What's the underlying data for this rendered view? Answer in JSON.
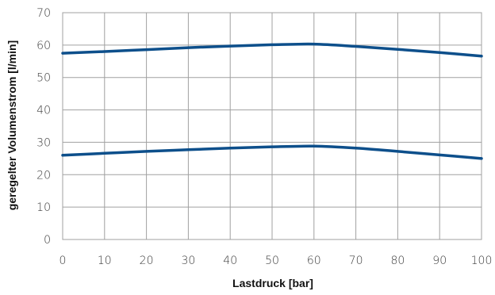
{
  "chart_data": {
    "type": "line",
    "title": "",
    "xlabel": "Lastdruck [bar]",
    "ylabel": "geregelter Volumenstrom [l/min]",
    "xlim": [
      0,
      100
    ],
    "ylim": [
      0,
      70
    ],
    "x_ticks": [
      "0",
      "10",
      "20",
      "30",
      "40",
      "50",
      "60",
      "70",
      "80",
      "90",
      "100"
    ],
    "y_ticks": [
      "0",
      "10",
      "20",
      "30",
      "40",
      "50",
      "60",
      "70"
    ],
    "grid": true,
    "series_color": "#0d4f8b",
    "series": [
      {
        "x": [
          0,
          10,
          20,
          30,
          40,
          50,
          60,
          70,
          80,
          90,
          100
        ],
        "values": [
          57.5,
          58.0,
          58.6,
          59.2,
          59.7,
          60.1,
          60.3,
          59.6,
          58.7,
          57.7,
          56.6
        ]
      },
      {
        "x": [
          0,
          10,
          20,
          30,
          40,
          50,
          60,
          70,
          80,
          90,
          100
        ],
        "values": [
          26.0,
          26.6,
          27.2,
          27.7,
          28.2,
          28.6,
          28.8,
          28.2,
          27.2,
          26.1,
          25.0
        ]
      }
    ]
  }
}
